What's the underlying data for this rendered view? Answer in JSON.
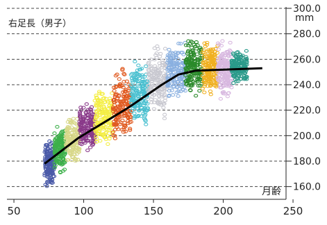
{
  "chart_data": {
    "type": "scatter",
    "title": "右足長（男子）",
    "xlabel": "月齢",
    "ylabel": "mm",
    "xlim": [
      45,
      245
    ],
    "ylim": [
      150,
      300
    ],
    "x_ticks": [
      50,
      100,
      150,
      200,
      250
    ],
    "y_ticks": [
      160.0,
      180.0,
      200.0,
      220.0,
      240.0,
      260.0,
      280.0,
      300.0
    ],
    "y_tick_labels": [
      "160.0",
      "180.0",
      "200.0",
      "220.0",
      "240.0",
      "260.0",
      "280.0",
      "300.0"
    ],
    "grid": {
      "horizontal_dashed": true,
      "vertical": false
    },
    "legend": "none",
    "band_colors": [
      "#4a5aa8",
      "#3db04a",
      "#d8d88a",
      "#8a3a8a",
      "#f4ee44",
      "#e05a20",
      "#4ac0d0",
      "#c8c8d0",
      "#8ab0e0",
      "#2a8a2a",
      "#f0b020",
      "#d8b8e0",
      "#2a9a8a"
    ],
    "scatter_bands": [
      {
        "x_range": [
          72,
          79
        ],
        "y_range": [
          156,
          200
        ]
      },
      {
        "x_range": [
          79,
          87
        ],
        "y_range": [
          168,
          212
        ]
      },
      {
        "x_range": [
          87,
          97
        ],
        "y_range": [
          175,
          218
        ]
      },
      {
        "x_range": [
          97,
          108
        ],
        "y_range": [
          182,
          228
        ]
      },
      {
        "x_range": [
          108,
          121
        ],
        "y_range": [
          184,
          243
        ]
      },
      {
        "x_range": [
          121,
          134
        ],
        "y_range": [
          188,
          257
        ]
      },
      {
        "x_range": [
          134,
          146
        ],
        "y_range": [
          199,
          268
        ]
      },
      {
        "x_range": [
          146,
          160
        ],
        "y_range": [
          209,
          277
        ]
      },
      {
        "x_range": [
          160,
          173
        ],
        "y_range": [
          224,
          278
        ]
      },
      {
        "x_range": [
          173,
          185
        ],
        "y_range": [
          228,
          281
        ]
      },
      {
        "x_range": [
          185,
          196
        ],
        "y_range": [
          226,
          281
        ]
      },
      {
        "x_range": [
          196,
          206
        ],
        "y_range": [
          223,
          278
        ]
      },
      {
        "x_range": [
          206,
          217
        ],
        "y_range": [
          238,
          270
        ]
      }
    ],
    "series": [
      {
        "type": "line",
        "x": [
          72,
          84,
          96,
          108,
          120,
          132,
          144,
          156,
          168,
          180,
          192,
          204,
          216,
          228
        ],
        "y": [
          178,
          188,
          198,
          206,
          214,
          222,
          231,
          240,
          248,
          251,
          251.5,
          252,
          252.5,
          253
        ]
      }
    ]
  }
}
